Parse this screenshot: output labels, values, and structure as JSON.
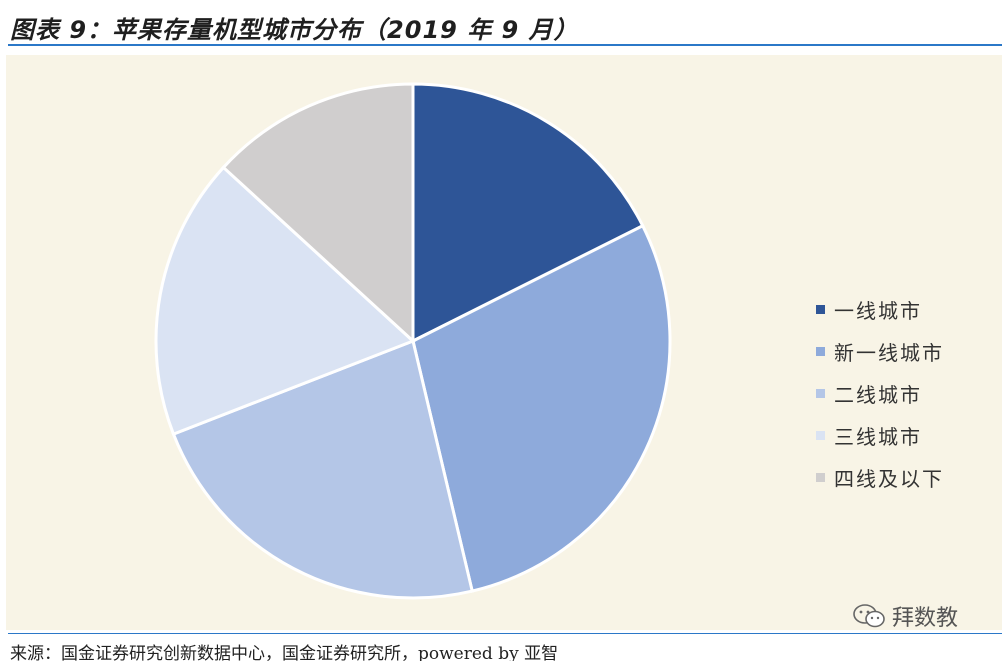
{
  "figure": {
    "title": "图表 9：苹果存量机型城市分布（2019 年 9 月）",
    "source": "来源：国金证券研究创新数据中心，国金证券研究所，powered by 亚智"
  },
  "watermark": {
    "text": "拜数教",
    "icon": "wechat-icon"
  },
  "colors": {
    "accent_rule": "#2b78c8",
    "panel_bg": "#f8f4e6"
  },
  "chart_data": {
    "type": "pie",
    "title": "",
    "categories": [
      "一线城市",
      "新一线城市",
      "二线城市",
      "三线城市",
      "四线及以下"
    ],
    "values": [
      17.6,
      28.7,
      22.8,
      17.7,
      13.2
    ],
    "unit": "%",
    "colors": [
      "#2e5597",
      "#8eaadb",
      "#b4c6e7",
      "#dae3f3",
      "#d0cece"
    ],
    "start_angle_deg": 0,
    "direction": "clockwise",
    "legend_position": "right",
    "data_labels": false
  }
}
